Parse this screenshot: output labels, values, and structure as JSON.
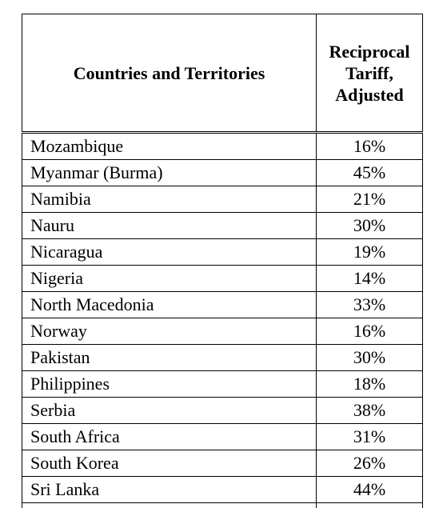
{
  "table": {
    "headers": {
      "country": "Countries and Territories",
      "rate": "Reciprocal Tariff, Adjusted"
    },
    "rows": [
      {
        "country": "Mozambique",
        "rate": "16%"
      },
      {
        "country": "Myanmar (Burma)",
        "rate": "45%"
      },
      {
        "country": "Namibia",
        "rate": "21%"
      },
      {
        "country": "Nauru",
        "rate": "30%"
      },
      {
        "country": "Nicaragua",
        "rate": "19%"
      },
      {
        "country": "Nigeria",
        "rate": "14%"
      },
      {
        "country": "North Macedonia",
        "rate": "33%"
      },
      {
        "country": "Norway",
        "rate": "16%"
      },
      {
        "country": "Pakistan",
        "rate": "30%"
      },
      {
        "country": "Philippines",
        "rate": "18%"
      },
      {
        "country": "Serbia",
        "rate": "38%"
      },
      {
        "country": "South Africa",
        "rate": "31%"
      },
      {
        "country": "South Korea",
        "rate": "26%"
      },
      {
        "country": "Sri Lanka",
        "rate": "44%"
      }
    ]
  }
}
